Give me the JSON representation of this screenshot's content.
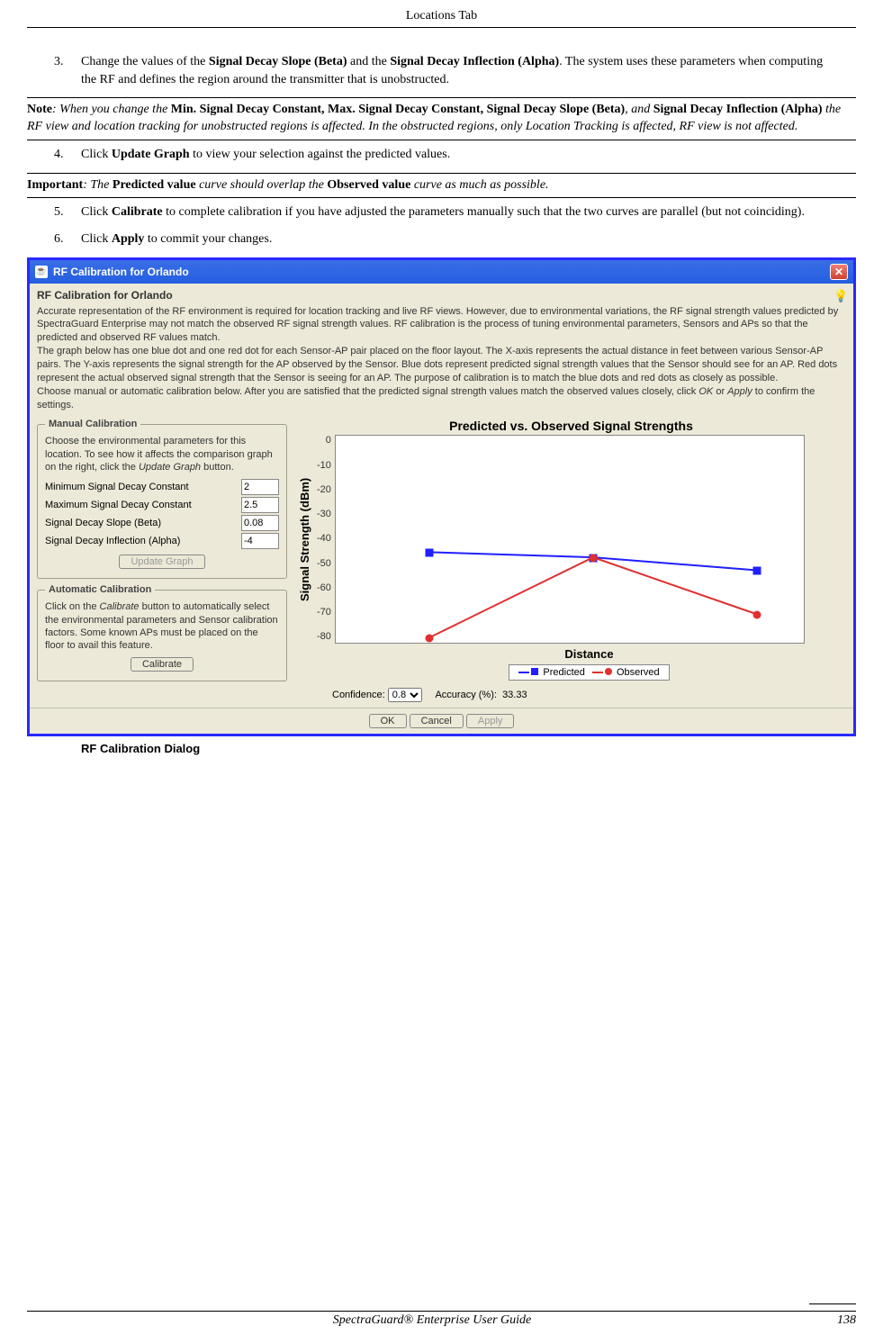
{
  "header": {
    "title": "Locations Tab"
  },
  "steps": {
    "s3": {
      "num": "3.",
      "pre": "Change the values of the ",
      "b1": "Signal Decay Slope (Beta)",
      "mid": " and the ",
      "b2": "Signal Decay Inflection (Alpha)",
      "post": ". The system uses these parameters when computing the RF and defines the region around the transmitter that is unobstructed."
    },
    "s4": {
      "num": "4.",
      "pre": "Click ",
      "b1": "Update Graph",
      "post": " to view your selection against the predicted values."
    },
    "s5": {
      "num": "5.",
      "pre": "Click ",
      "b1": "Calibrate",
      "post": " to complete calibration if you have adjusted the parameters manually such that the two curves are parallel (but not coinciding)."
    },
    "s6": {
      "num": "6.",
      "pre": "Click ",
      "b1": "Apply",
      "post": " to commit your changes."
    }
  },
  "notes": {
    "n1": {
      "lead": "Note",
      "t1": ": When you change the ",
      "b1": "Min. Signal Decay Constant, Max. Signal Decay Constant, Signal Decay Slope (Beta)",
      "t2": ", and ",
      "b2": "Signal Decay Inflection (Alpha)",
      "t3": " the RF view and location tracking for unobstructed regions is affected. In the obstructed regions, only Location Tracking is affected, RF view is not affected."
    },
    "n2": {
      "lead": "Important",
      "t1": ": The ",
      "b1": "Predicted value",
      "t2": " curve should overlap the ",
      "b2": "Observed value",
      "t3": " curve as much as possible."
    }
  },
  "caption": "RF Calibration Dialog",
  "dialog": {
    "title": "RF Calibration for Orlando",
    "subtitle": "RF Calibration for Orlando",
    "desc_p1": "Accurate representation of the RF environment is required for location tracking and live RF views. However, due to environmental variations, the RF signal strength values predicted by SpectraGuard Enterprise may not match the observed RF signal strength values. RF calibration is the process of tuning environmental parameters, Sensors and APs so that the predicted and observed RF values match.",
    "desc_p2": "The graph below has one blue dot and one red dot for each Sensor-AP pair placed on the floor layout. The X-axis represents the actual distance in feet between various Sensor-AP pairs. The Y-axis represents the signal strength for the AP observed by the Sensor. Blue dots represent predicted signal strength values that the Sensor should see for an AP. Red dots represent the actual observed signal strength that the Sensor is seeing for an AP. The purpose of calibration is to match the blue dots and red dots as closely as possible.",
    "desc_p3a": "Choose manual or automatic calibration below. After you are satisfied that the predicted signal strength values match the observed values closely, click ",
    "desc_p3_ok": "OK",
    "desc_p3b": " or ",
    "desc_p3_apply": "Apply",
    "desc_p3c": " to confirm the settings.",
    "manual": {
      "legend": "Manual Calibration",
      "intro_a": "Choose the environmental parameters for this location. To see how it affects the comparison graph on the right, click the ",
      "intro_btn": "Update Graph",
      "intro_b": " button.",
      "params": {
        "min_label": "Minimum Signal Decay Constant",
        "min_val": "2",
        "max_label": "Maximum Signal Decay Constant",
        "max_val": "2.5",
        "beta_label": "Signal Decay Slope (Beta)",
        "beta_val": "0.08",
        "alpha_label": "Signal Decay Inflection (Alpha)",
        "alpha_val": "-4"
      },
      "update_btn": "Update Graph"
    },
    "auto": {
      "legend": "Automatic Calibration",
      "intro_a": "Click on the ",
      "intro_btn": "Calibrate",
      "intro_b": " button to automatically select the environmental parameters and Sensor calibration factors. Some known APs must be placed on the floor to avail this feature.",
      "calibrate_btn": "Calibrate"
    },
    "chart": {
      "type": "line-scatter",
      "title": "Predicted vs. Observed Signal Strengths",
      "y_title": "Signal Strength (dBm)",
      "x_title": "Distance",
      "ylim": [
        -80,
        0
      ],
      "yticks": [
        "0",
        "-10",
        "-20",
        "-30",
        "-40",
        "-50",
        "-60",
        "-70",
        "-80"
      ],
      "background_color": "#ffffff",
      "axis_color": "#888888",
      "series": [
        {
          "name": "Predicted",
          "marker": "square",
          "color": "#2020ff",
          "points": [
            {
              "x_pct": 20,
              "y": -45
            },
            {
              "x_pct": 55,
              "y": -47
            },
            {
              "x_pct": 90,
              "y": -52
            }
          ]
        },
        {
          "name": "Observed",
          "marker": "circle",
          "color": "#e03030",
          "points": [
            {
              "x_pct": 20,
              "y": -78
            },
            {
              "x_pct": 55,
              "y": -47
            },
            {
              "x_pct": 90,
              "y": -69
            }
          ]
        }
      ],
      "legend": {
        "predicted": "Predicted",
        "observed": "Observed"
      },
      "confidence_label": "Confidence:",
      "confidence_value": "0.8",
      "accuracy_label": "Accuracy (%):",
      "accuracy_value": "33.33"
    },
    "buttons": {
      "ok": "OK",
      "cancel": "Cancel",
      "apply": "Apply"
    }
  },
  "footer": {
    "product": "SpectraGuard®  Enterprise User Guide",
    "page": "138"
  }
}
